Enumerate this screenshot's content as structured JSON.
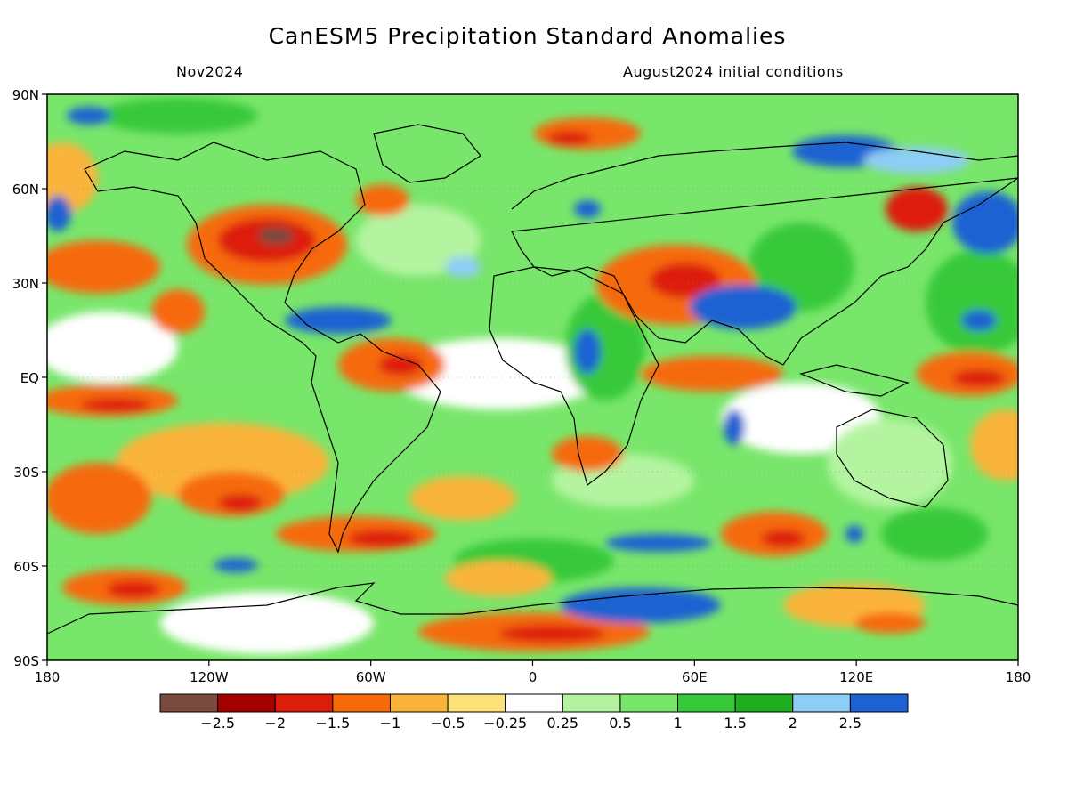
{
  "title": "CanESM5 Precipitation Standard Anomalies",
  "valid_month": "Nov2024",
  "initial_conditions": "August2024 initial conditions",
  "map": {
    "projection": "equirectangular",
    "lon_range": [
      -180,
      180
    ],
    "lat_range": [
      -90,
      90
    ],
    "lat_ticks": [
      {
        "lat": 90,
        "label": "90N"
      },
      {
        "lat": 60,
        "label": "60N"
      },
      {
        "lat": 30,
        "label": "30N"
      },
      {
        "lat": 0,
        "label": "EQ"
      },
      {
        "lat": -30,
        "label": "30S"
      },
      {
        "lat": -60,
        "label": "60S"
      },
      {
        "lat": -90,
        "label": "90S"
      }
    ],
    "lon_ticks": [
      {
        "lon": -180,
        "label": "180"
      },
      {
        "lon": -120,
        "label": "120W"
      },
      {
        "lon": -60,
        "label": "60W"
      },
      {
        "lon": 0,
        "label": "0"
      },
      {
        "lon": 60,
        "label": "60E"
      },
      {
        "lon": 120,
        "label": "120E"
      },
      {
        "lon": 180,
        "label": "180"
      }
    ]
  },
  "colorbar": {
    "colors": [
      "#7a4a3c",
      "#a50000",
      "#dd1c0a",
      "#f66a0a",
      "#fbb43a",
      "#fde27a",
      "#ffffff",
      "#b4f4a0",
      "#78e66a",
      "#37c93a",
      "#1eae1e",
      "#8ecdf5",
      "#1c62d2"
    ],
    "labels": [
      "−2.5",
      "−2",
      "−1.5",
      "−1",
      "−0.5",
      "−0.25",
      "0.25",
      "0.5",
      "1",
      "1.5",
      "2",
      "2.5"
    ]
  }
}
